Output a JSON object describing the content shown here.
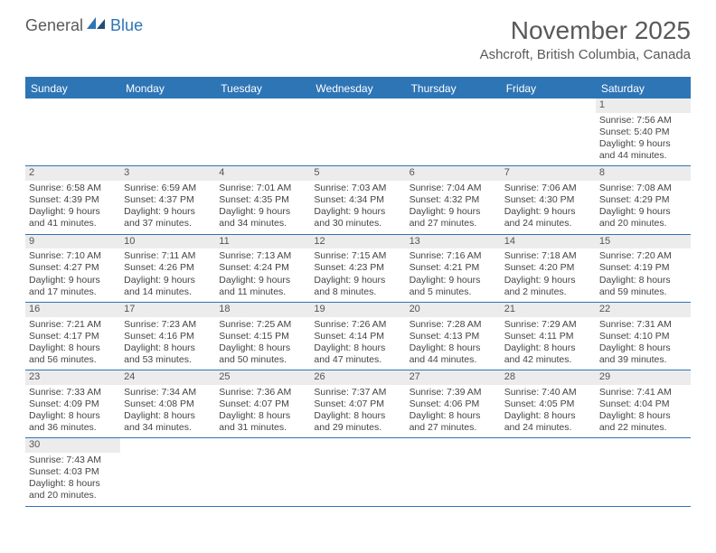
{
  "logo": {
    "word1": "General",
    "word2": "Blue"
  },
  "title": "November 2025",
  "location": "Ashcroft, British Columbia, Canada",
  "header_bg": "#2e75b6",
  "weekdays": [
    "Sunday",
    "Monday",
    "Tuesday",
    "Wednesday",
    "Thursday",
    "Friday",
    "Saturday"
  ],
  "first_weekday_index": 6,
  "days": [
    {
      "n": 1,
      "sunrise": "7:56 AM",
      "sunset": "5:40 PM",
      "daylight": "9 hours and 44 minutes."
    },
    {
      "n": 2,
      "sunrise": "6:58 AM",
      "sunset": "4:39 PM",
      "daylight": "9 hours and 41 minutes."
    },
    {
      "n": 3,
      "sunrise": "6:59 AM",
      "sunset": "4:37 PM",
      "daylight": "9 hours and 37 minutes."
    },
    {
      "n": 4,
      "sunrise": "7:01 AM",
      "sunset": "4:35 PM",
      "daylight": "9 hours and 34 minutes."
    },
    {
      "n": 5,
      "sunrise": "7:03 AM",
      "sunset": "4:34 PM",
      "daylight": "9 hours and 30 minutes."
    },
    {
      "n": 6,
      "sunrise": "7:04 AM",
      "sunset": "4:32 PM",
      "daylight": "9 hours and 27 minutes."
    },
    {
      "n": 7,
      "sunrise": "7:06 AM",
      "sunset": "4:30 PM",
      "daylight": "9 hours and 24 minutes."
    },
    {
      "n": 8,
      "sunrise": "7:08 AM",
      "sunset": "4:29 PM",
      "daylight": "9 hours and 20 minutes."
    },
    {
      "n": 9,
      "sunrise": "7:10 AM",
      "sunset": "4:27 PM",
      "daylight": "9 hours and 17 minutes."
    },
    {
      "n": 10,
      "sunrise": "7:11 AM",
      "sunset": "4:26 PM",
      "daylight": "9 hours and 14 minutes."
    },
    {
      "n": 11,
      "sunrise": "7:13 AM",
      "sunset": "4:24 PM",
      "daylight": "9 hours and 11 minutes."
    },
    {
      "n": 12,
      "sunrise": "7:15 AM",
      "sunset": "4:23 PM",
      "daylight": "9 hours and 8 minutes."
    },
    {
      "n": 13,
      "sunrise": "7:16 AM",
      "sunset": "4:21 PM",
      "daylight": "9 hours and 5 minutes."
    },
    {
      "n": 14,
      "sunrise": "7:18 AM",
      "sunset": "4:20 PM",
      "daylight": "9 hours and 2 minutes."
    },
    {
      "n": 15,
      "sunrise": "7:20 AM",
      "sunset": "4:19 PM",
      "daylight": "8 hours and 59 minutes."
    },
    {
      "n": 16,
      "sunrise": "7:21 AM",
      "sunset": "4:17 PM",
      "daylight": "8 hours and 56 minutes."
    },
    {
      "n": 17,
      "sunrise": "7:23 AM",
      "sunset": "4:16 PM",
      "daylight": "8 hours and 53 minutes."
    },
    {
      "n": 18,
      "sunrise": "7:25 AM",
      "sunset": "4:15 PM",
      "daylight": "8 hours and 50 minutes."
    },
    {
      "n": 19,
      "sunrise": "7:26 AM",
      "sunset": "4:14 PM",
      "daylight": "8 hours and 47 minutes."
    },
    {
      "n": 20,
      "sunrise": "7:28 AM",
      "sunset": "4:13 PM",
      "daylight": "8 hours and 44 minutes."
    },
    {
      "n": 21,
      "sunrise": "7:29 AM",
      "sunset": "4:11 PM",
      "daylight": "8 hours and 42 minutes."
    },
    {
      "n": 22,
      "sunrise": "7:31 AM",
      "sunset": "4:10 PM",
      "daylight": "8 hours and 39 minutes."
    },
    {
      "n": 23,
      "sunrise": "7:33 AM",
      "sunset": "4:09 PM",
      "daylight": "8 hours and 36 minutes."
    },
    {
      "n": 24,
      "sunrise": "7:34 AM",
      "sunset": "4:08 PM",
      "daylight": "8 hours and 34 minutes."
    },
    {
      "n": 25,
      "sunrise": "7:36 AM",
      "sunset": "4:07 PM",
      "daylight": "8 hours and 31 minutes."
    },
    {
      "n": 26,
      "sunrise": "7:37 AM",
      "sunset": "4:07 PM",
      "daylight": "8 hours and 29 minutes."
    },
    {
      "n": 27,
      "sunrise": "7:39 AM",
      "sunset": "4:06 PM",
      "daylight": "8 hours and 27 minutes."
    },
    {
      "n": 28,
      "sunrise": "7:40 AM",
      "sunset": "4:05 PM",
      "daylight": "8 hours and 24 minutes."
    },
    {
      "n": 29,
      "sunrise": "7:41 AM",
      "sunset": "4:04 PM",
      "daylight": "8 hours and 22 minutes."
    },
    {
      "n": 30,
      "sunrise": "7:43 AM",
      "sunset": "4:03 PM",
      "daylight": "8 hours and 20 minutes."
    }
  ],
  "labels": {
    "sunrise": "Sunrise:",
    "sunset": "Sunset:",
    "daylight": "Daylight:"
  }
}
